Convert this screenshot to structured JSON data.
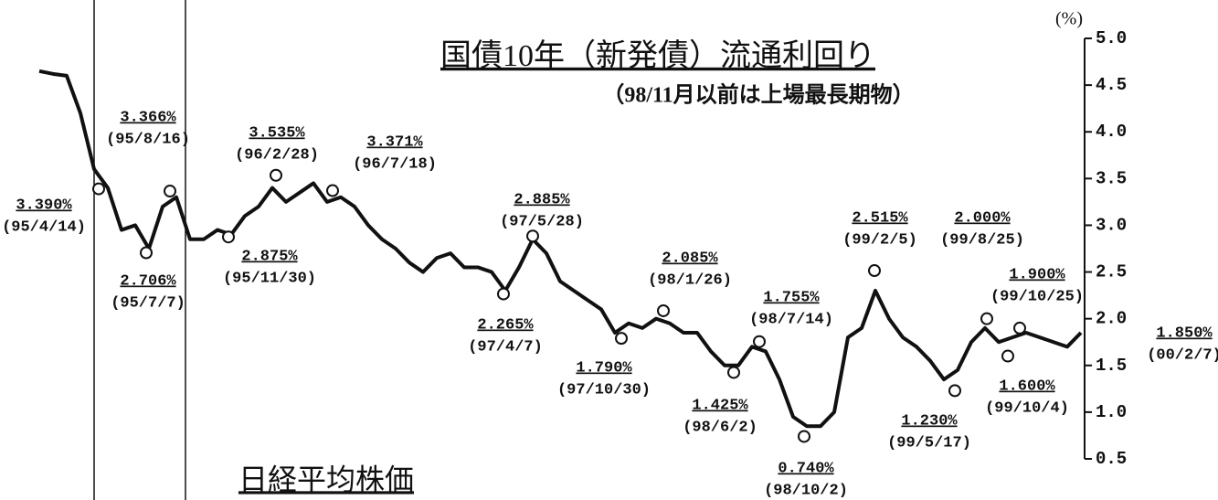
{
  "chart_data": {
    "type": "line",
    "title": "国債10年（新発債）流通利回り",
    "subtitle": "（98/11月以前は上場最長期物）",
    "footer_title": "日経平均株価",
    "y_unit": "(%)",
    "color": "#111111",
    "values": [
      4.65,
      4.62,
      4.6,
      4.2,
      3.6,
      3.4,
      2.95,
      3.0,
      2.75,
      3.2,
      3.3,
      2.85,
      2.85,
      2.95,
      2.9,
      3.1,
      3.2,
      3.4,
      3.25,
      3.35,
      3.45,
      3.25,
      3.3,
      3.2,
      3.0,
      2.85,
      2.75,
      2.6,
      2.5,
      2.65,
      2.7,
      2.55,
      2.55,
      2.5,
      2.3,
      2.55,
      2.85,
      2.7,
      2.4,
      2.3,
      2.2,
      2.1,
      1.85,
      1.95,
      1.9,
      2.0,
      1.95,
      1.85,
      1.85,
      1.65,
      1.5,
      1.5,
      1.7,
      1.65,
      1.35,
      0.95,
      0.85,
      0.85,
      1.0,
      1.8,
      1.9,
      2.3,
      2.0,
      1.8,
      1.7,
      1.55,
      1.35,
      1.45,
      1.75,
      1.9,
      1.75,
      1.8,
      1.85,
      1.8,
      1.75,
      1.7,
      1.85
    ],
    "ylim": [
      0.5,
      5.0
    ],
    "yticks": [
      {
        "value": 0.5,
        "label": "0.5"
      },
      {
        "value": 1.0,
        "label": "1.0"
      },
      {
        "value": 1.5,
        "label": "1.5"
      },
      {
        "value": 2.0,
        "label": "2.0"
      },
      {
        "value": 2.5,
        "label": "2.5"
      },
      {
        "value": 3.0,
        "label": "3.0"
      },
      {
        "value": 3.5,
        "label": "3.5"
      },
      {
        "value": 4.0,
        "label": "4.0"
      },
      {
        "value": 4.5,
        "label": "4.5"
      },
      {
        "value": 5.0,
        "label": "5.0"
      }
    ],
    "annotations": {
      "values": [
        3.39,
        3.366,
        2.706,
        2.875,
        3.535,
        3.371,
        2.885,
        2.265,
        1.79,
        2.085,
        1.425,
        1.755,
        0.74,
        2.515,
        1.23,
        2.0,
        1.6,
        1.9,
        1.85
      ],
      "value_labels": [
        "3.390%",
        "3.366%",
        "2.706%",
        "2.875%",
        "3.535%",
        "3.371%",
        "2.885%",
        "2.265%",
        "1.790%",
        "2.085%",
        "1.425%",
        "1.755%",
        "0.740%",
        "2.515%",
        "1.230%",
        "2.000%",
        "1.600%",
        "1.900%",
        "1.850%"
      ],
      "dates": [
        "(95/4/14)",
        "(95/8/16)",
        "(95/7/7)",
        "(95/11/30)",
        "(96/2/28)",
        "(96/7/18)",
        "(97/5/28)",
        "(97/4/7)",
        "(97/10/30)",
        "(98/1/26)",
        "(98/6/2)",
        "(98/7/14)",
        "(98/10/2)",
        "(99/2/5)",
        "(99/5/17)",
        "(99/8/25)",
        "(99/10/4)",
        "(99/10/25)",
        "(00/2/7)"
      ]
    }
  }
}
